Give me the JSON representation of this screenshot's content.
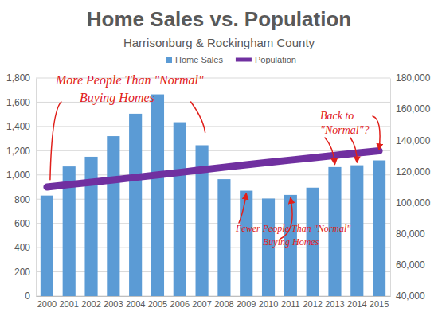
{
  "chart_data": {
    "type": "bar",
    "title": "Home Sales vs. Population",
    "subtitle": "Harrisonburg & Rockingham County",
    "categories": [
      "2000",
      "2001",
      "2002",
      "2003",
      "2004",
      "2005",
      "2006",
      "2007",
      "2008",
      "2009",
      "2010",
      "2011",
      "2012",
      "2013",
      "2014",
      "2015"
    ],
    "series": [
      {
        "name": "Home Sales",
        "type": "bar",
        "color": "#5b9bd5",
        "values": [
          830,
          1070,
          1150,
          1320,
          1505,
          1665,
          1435,
          1245,
          965,
          870,
          805,
          835,
          895,
          1065,
          1080,
          1120
        ]
      },
      {
        "name": "Population",
        "type": "line",
        "color": "#7030a0",
        "axis": "y2",
        "values": [
          110000,
          111600,
          113100,
          114600,
          116200,
          117800,
          119400,
          121100,
          122700,
          124300,
          125800,
          127300,
          128800,
          130300,
          131800,
          133200
        ]
      }
    ],
    "ylim": [
      0,
      1800
    ],
    "yticks": [
      0,
      200,
      400,
      600,
      800,
      {
        "value": 1000,
        "label": "1,000"
      },
      {
        "value": 1200,
        "label": "1,200"
      },
      {
        "value": 1400,
        "label": "1,400"
      },
      {
        "value": 1600,
        "label": "1,600"
      },
      {
        "value": 1800,
        "label": "1,800"
      }
    ],
    "y2lim": [
      40000,
      180000
    ],
    "y2ticks": [
      {
        "value": 40000,
        "label": "40,000"
      },
      {
        "value": 60000,
        "label": "60,000"
      },
      {
        "value": 80000,
        "label": "80,000"
      },
      {
        "value": 100000,
        "label": "100,000"
      },
      {
        "value": 120000,
        "label": "120,000"
      },
      {
        "value": 140000,
        "label": "140,000"
      },
      {
        "value": 160000,
        "label": "160,000"
      },
      {
        "value": 180000,
        "label": "180,000"
      }
    ],
    "grid": true,
    "legend": "top",
    "annotations": [
      [
        "More People Than \"Normal\"",
        "Buying Homes"
      ],
      [
        "Fewer People Than \"Normal\"",
        "Buying Homes"
      ],
      [
        "Back to",
        "\"Normal\"?"
      ]
    ]
  }
}
